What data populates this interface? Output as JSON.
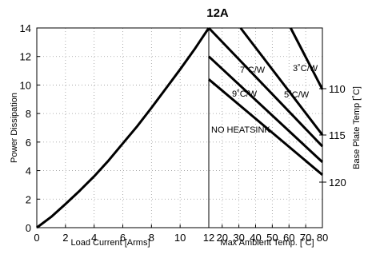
{
  "chart_data": {
    "type": "line",
    "title": "12A",
    "left_panel": {
      "xlabel": "Load Current  [Arms]",
      "x_ticks": [
        0,
        2,
        4,
        6,
        8,
        10,
        12
      ],
      "xlim": [
        0,
        12
      ],
      "series": [
        {
          "x": [
            0,
            1,
            2,
            3,
            4,
            5,
            6,
            7,
            8,
            9,
            10,
            11,
            12
          ],
          "y": [
            0,
            0.75,
            1.65,
            2.6,
            3.6,
            4.7,
            5.9,
            7.1,
            8.4,
            9.75,
            11.1,
            12.5,
            14
          ]
        }
      ]
    },
    "right_panel": {
      "xlabel": "Max Ambient Temp. [˚C]",
      "x_ticks": [
        12,
        20,
        30,
        40,
        50,
        60,
        70,
        80
      ],
      "xlim": [
        12,
        80
      ],
      "series": [
        {
          "name": "NO HEATSINK",
          "x": [
            12,
            80
          ],
          "y": [
            10.4,
            3.7
          ]
        },
        {
          "name": "9˚C/W",
          "x": [
            12,
            80
          ],
          "y": [
            12,
            4.6
          ]
        },
        {
          "name": "7˚C/W",
          "x": [
            12,
            80
          ],
          "y": [
            14,
            5.7
          ]
        },
        {
          "name": "5˚C/W",
          "x": [
            31,
            80
          ],
          "y": [
            14,
            6.5
          ]
        },
        {
          "name": "3˚C/W",
          "x": [
            61,
            80
          ],
          "y": [
            14,
            9.7
          ]
        }
      ]
    },
    "ylabel": "Power Dissipation",
    "ylim": [
      0,
      14
    ],
    "y_ticks": [
      0,
      2,
      4,
      6,
      8,
      10,
      12,
      14
    ],
    "y2label": "Base Plate Temp [˚C]",
    "y2_ticks": [
      110,
      115,
      120
    ],
    "grid": true
  }
}
